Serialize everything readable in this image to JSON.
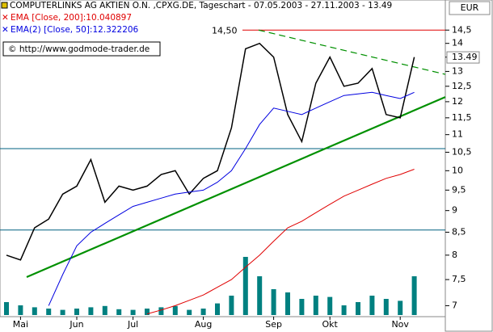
{
  "chart_data": {
    "type": "line",
    "title": "COMPUTERLINKS AG AKTIEN O.N. ,CPXG.DE, Tageschart - 07.05.2003 - 27.11.2003 - 13.49",
    "source": "© http://www.godmode-trader.de",
    "currency": "EUR",
    "log_scale": true,
    "categories": [
      null,
      "Mai",
      null,
      null,
      null,
      "Jun",
      null,
      null,
      null,
      "Jul",
      null,
      null,
      null,
      null,
      "Aug",
      null,
      null,
      null,
      null,
      "Sep",
      null,
      null,
      null,
      "Okt",
      null,
      null,
      null,
      null,
      "Nov",
      null
    ],
    "series": [
      {
        "name": "COMPUTERLINKS AG AKTIEN O.N.",
        "color": "#000000",
        "values": [
          8.0,
          7.9,
          8.6,
          8.8,
          9.4,
          9.6,
          10.3,
          9.2,
          9.6,
          9.5,
          9.6,
          9.9,
          10.0,
          9.4,
          9.8,
          10.0,
          11.2,
          13.8,
          14.0,
          13.5,
          11.6,
          10.8,
          12.6,
          13.5,
          12.5,
          12.6,
          13.1,
          11.6,
          11.5,
          13.5
        ]
      },
      {
        "name": "EMA [Close, 200]:10.040897",
        "color": "#e00000",
        "values": [
          null,
          null,
          null,
          null,
          null,
          null,
          null,
          null,
          null,
          null,
          6.85,
          6.92,
          7.0,
          7.1,
          7.2,
          7.35,
          7.5,
          7.75,
          8.0,
          8.3,
          8.6,
          8.75,
          8.95,
          9.15,
          9.35,
          9.5,
          9.65,
          9.8,
          9.9,
          10.04
        ]
      },
      {
        "name": "EMA(2) [Close, 50]:12.322206",
        "color": "#0000e0",
        "values": [
          null,
          null,
          null,
          7.0,
          7.6,
          8.2,
          8.5,
          8.7,
          8.9,
          9.1,
          9.2,
          9.3,
          9.4,
          9.45,
          9.5,
          9.7,
          10.0,
          10.6,
          11.3,
          11.8,
          11.7,
          11.6,
          11.8,
          12.0,
          12.2,
          12.25,
          12.3,
          12.2,
          12.1,
          12.3
        ]
      }
    ],
    "volume": {
      "color": "#008080",
      "vlim": [
        0,
        100
      ],
      "values": [
        20,
        15,
        12,
        10,
        8,
        10,
        12,
        14,
        9,
        8,
        10,
        12,
        14,
        8,
        10,
        18,
        30,
        90,
        60,
        40,
        35,
        25,
        30,
        28,
        15,
        20,
        30,
        25,
        22,
        60
      ]
    },
    "ylim": [
      6.8,
      15.7
    ],
    "yticks": [
      {
        "value": 14.5,
        "label": "14,5"
      },
      14,
      {
        "value": 13.5,
        "label": "13,5"
      },
      13,
      {
        "value": 12.5,
        "label": "12,5"
      },
      12,
      {
        "value": 11.5,
        "label": "11,5"
      },
      11,
      {
        "value": 10.5,
        "label": "10,5"
      },
      10,
      {
        "value": 9.5,
        "label": "9,5"
      },
      9,
      {
        "value": 8.5,
        "label": "8,5"
      },
      8,
      {
        "value": 7.5,
        "label": "7,5"
      },
      7
    ],
    "last_price": 13.49,
    "resistance": {
      "value": 14.5,
      "label": "14,50",
      "color": "#e00000"
    },
    "support_lines": {
      "color": "#006080",
      "values": [
        10.6,
        8.55
      ]
    },
    "trendlines": [
      {
        "color": "#009000",
        "dashed": false,
        "values": [
          7.55,
          12.15
        ]
      },
      {
        "color": "#009000",
        "dashed": true,
        "values": [
          14.5,
          12.9
        ]
      }
    ]
  }
}
